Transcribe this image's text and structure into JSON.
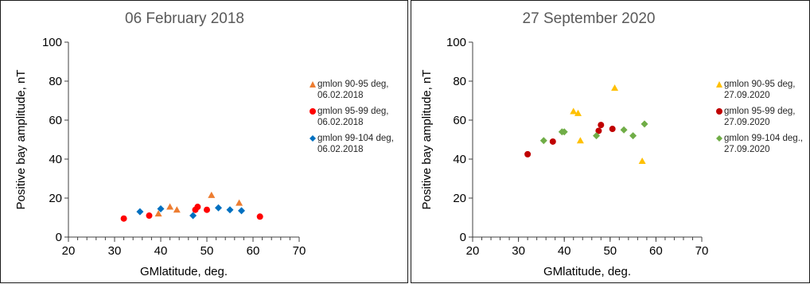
{
  "chart_data": [
    {
      "type": "scatter",
      "title": "06 February 2018",
      "xlabel": "GMlatitude, deg.",
      "ylabel": "Positive bay amplitude, nT",
      "xlim": [
        20,
        70
      ],
      "ylim": [
        0,
        100
      ],
      "xticks": [
        "20",
        "30",
        "40",
        "50",
        "60",
        "70"
      ],
      "yticks": [
        "0",
        "20",
        "40",
        "60",
        "80",
        "100"
      ],
      "legend_position": "right",
      "series": [
        {
          "name": "gmlon 90-95 deg, 06.02.2018",
          "color": "#ED7D31",
          "marker": "triangle",
          "points": [
            [
              39.5,
              12
            ],
            [
              42,
              15.5
            ],
            [
              43.5,
              14
            ],
            [
              51,
              21.5
            ],
            [
              57,
              17.5
            ]
          ]
        },
        {
          "name": "gmlon 95-99 deg, 06.02.2018",
          "color": "#FF0000",
          "marker": "circle",
          "points": [
            [
              32,
              9.5
            ],
            [
              37.5,
              11
            ],
            [
              47.5,
              14
            ],
            [
              48,
              15.5
            ],
            [
              50,
              14
            ],
            [
              61.5,
              10.5
            ]
          ]
        },
        {
          "name": "gmlon 99-104 deg, 06.02.2018",
          "color": "#0070C0",
          "marker": "diamond",
          "points": [
            [
              35.5,
              13
            ],
            [
              40,
              14.5
            ],
            [
              47,
              11
            ],
            [
              52.5,
              15
            ],
            [
              55,
              14
            ],
            [
              57.5,
              13.5
            ]
          ]
        }
      ]
    },
    {
      "type": "scatter",
      "title": "27 September 2020",
      "xlabel": "GMlatitude, deg.",
      "ylabel": "Positive bay amplitude, nT",
      "xlim": [
        20,
        70
      ],
      "ylim": [
        0,
        100
      ],
      "xticks": [
        "20",
        "30",
        "40",
        "50",
        "60",
        "70"
      ],
      "yticks": [
        "0",
        "20",
        "40",
        "60",
        "80",
        "100"
      ],
      "legend_position": "right",
      "series": [
        {
          "name": "gmlon 90-95 deg, 27.09.2020",
          "color": "#FFC000",
          "marker": "triangle",
          "points": [
            [
              42,
              64.5
            ],
            [
              43,
              63.5
            ],
            [
              43.5,
              49.5
            ],
            [
              51,
              76.5
            ],
            [
              57,
              39
            ]
          ]
        },
        {
          "name": "gmlon 95-99 deg, 27.09.2020",
          "color": "#C00000",
          "marker": "circle",
          "points": [
            [
              32,
              42.5
            ],
            [
              37.5,
              49
            ],
            [
              47.5,
              54.5
            ],
            [
              48,
              57.5
            ],
            [
              50.5,
              55.5
            ]
          ]
        },
        {
          "name": "gmlon 99-104 deg., 27.09.2020",
          "color": "#70AD47",
          "marker": "diamond",
          "points": [
            [
              35.5,
              49.5
            ],
            [
              39.5,
              54
            ],
            [
              40,
              54
            ],
            [
              47,
              52
            ],
            [
              53,
              55
            ],
            [
              55,
              52
            ],
            [
              57.5,
              58
            ]
          ]
        }
      ]
    }
  ],
  "legend_lines": [
    [
      "gmlon 90-95 deg,\n06.02.2018",
      "gmlon 95-99 deg,\n06.02.2018",
      "gmlon 99-104 deg,\n06.02.2018"
    ],
    [
      "gmlon 90-95 deg,\n27.09.2020",
      "gmlon 95-99 deg,\n27.09.2020",
      "gmlon 99-104 deg.,\n27.09.2020"
    ]
  ]
}
